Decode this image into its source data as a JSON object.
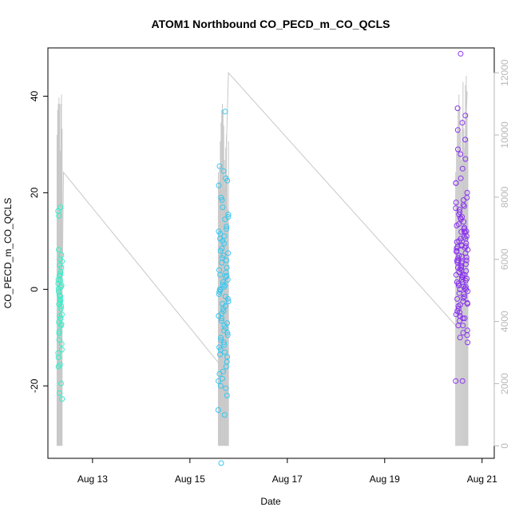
{
  "chart_data": {
    "type": "scatter",
    "title": "ATOM1 Northbound CO_PECD_m_CO_QCLS",
    "xlabel": "Date",
    "ylabel": "CO_PECD_m_CO_QCLS",
    "x_ticks": [
      "Aug 13",
      "Aug 15",
      "Aug 17",
      "Aug 19",
      "Aug 21"
    ],
    "y_ticks": [
      "-20",
      "0",
      "20",
      "40"
    ],
    "y2_ticks": [
      "0",
      "2000",
      "4000",
      "6000",
      "8000",
      "10000",
      "12000"
    ],
    "xlim": [
      "2016-08-12 02:00",
      "2016-08-21 06:00"
    ],
    "ylim": [
      -35,
      50
    ],
    "y2lim": [
      -400,
      12800
    ],
    "colors": {
      "first_flight": "#33f0c8",
      "second_flight": "#33c8f2",
      "third_flight": "#8a33f0",
      "secondary_line": "#c8c8c8",
      "right_axis": "#b8b8b8"
    },
    "series": [
      {
        "flight_window": [
          "2016-08-12 07:00",
          "2016-08-12 09:00"
        ],
        "values": [
          16.2,
          -2.3,
          -3.1,
          -7.2,
          -15.6,
          -14.1,
          0.5,
          -1.2,
          -5.2,
          3.1,
          8.2,
          7.1,
          5.0,
          1.2,
          -6.0,
          -10.5,
          -11.3,
          -2.8,
          0.1,
          -19.5,
          -21.5,
          -22.7,
          17.0,
          15.2,
          4.5,
          6.2,
          2.0,
          -4.0,
          -8.7,
          -12.5,
          1.8,
          -0.5,
          -3.5,
          -5.5,
          -13.2,
          3.6,
          -9.1,
          0.8,
          -2.1,
          -16.0,
          -7.5,
          2.8,
          5.8,
          -1.5,
          -6.8
        ]
      },
      {
        "flight_window": [
          "2016-08-15 14:00",
          "2016-08-15 19:00"
        ],
        "values": [
          -25.0,
          -26.0,
          -20.0,
          -22.0,
          -17.0,
          -12.0,
          -8.0,
          -5.0,
          -2.0,
          0.5,
          3.0,
          6.0,
          10.0,
          12.0,
          14.5,
          19.0,
          22.5,
          24.5,
          25.5,
          23.0,
          18.5,
          15.5,
          11.0,
          8.0,
          4.5,
          1.5,
          -1.0,
          -3.5,
          -6.5,
          -9.5,
          -11.0,
          -13.5,
          -16.0,
          -18.5,
          -19.0,
          -13.0,
          -10.0,
          -7.0,
          -4.0,
          -0.5,
          2.5,
          5.5,
          7.5,
          9.5,
          11.5,
          13.0,
          17.0,
          21.5,
          36.8,
          -36.0,
          -9.0,
          -4.5,
          0.0,
          3.5,
          6.5,
          -2.5,
          -7.5,
          -12.5,
          -15.0,
          1.0,
          4.0,
          -1.5,
          -6.0,
          2.0,
          -8.5,
          10.5,
          12.5,
          -3.0,
          -5.5,
          0.8,
          -10.5,
          -14.0,
          7.0,
          -17.5,
          -20.5,
          8.5,
          15.0,
          -11.5,
          -0.2,
          2.8
        ]
      },
      {
        "flight_window": [
          "2016-08-20 11:00",
          "2016-08-20 17:00"
        ],
        "values": [
          -19.0,
          -9.0,
          -4.0,
          0.0,
          4.0,
          8.0,
          12.0,
          16.0,
          20.0,
          25.0,
          29.0,
          27.0,
          23.0,
          18.0,
          14.0,
          10.0,
          6.0,
          2.0,
          -2.0,
          -6.0,
          -10.0,
          -11.0,
          -7.5,
          -3.5,
          0.5,
          4.5,
          8.5,
          12.5,
          16.5,
          19.0,
          34.5,
          37.5,
          31.0,
          28.0,
          22.0,
          17.5,
          13.5,
          9.5,
          5.5,
          1.5,
          -1.5,
          -5.5,
          -8.5,
          2.5,
          6.5,
          10.5,
          14.5,
          3.0,
          -1.0,
          7.0,
          11.0,
          15.0,
          -4.5,
          0.2,
          4.2,
          8.2,
          -2.5,
          1.2,
          5.2,
          9.2,
          13.2,
          17.2,
          -6.5,
          -9.5,
          -19.0,
          33.0,
          36.0,
          48.8,
          22.0,
          18.5,
          15.5,
          12.0,
          9.0,
          6.0,
          3.0,
          0.0,
          -3.0,
          -6.0,
          -7.5,
          1.8,
          4.8,
          7.8,
          10.8,
          -0.8,
          2.2,
          5.8,
          8.8,
          11.8,
          14.8,
          16.8,
          -1.8,
          0.8,
          3.8,
          6.8,
          9.8,
          12.8,
          -4.8,
          -2.8,
          1.5,
          4.5,
          7.5,
          10.5,
          -5.2,
          0.6,
          3.6,
          6.6,
          2.6,
          5.6,
          8.6,
          -3.2,
          -0.4,
          2.9,
          5.9,
          8.9,
          11.9
        ]
      }
    ],
    "secondary_series": {
      "axis": "right",
      "points": [
        [
          "2016-08-12 08:15",
          300
        ],
        [
          "2016-08-12 09:40",
          8800
        ],
        [
          "2016-08-15 15:00",
          2600
        ],
        [
          "2016-08-15 19:00",
          12000
        ],
        [
          "2016-08-20 12:00",
          3800
        ],
        [
          "2016-08-20 16:40",
          11400
        ]
      ],
      "spike_groups": [
        {
          "window": [
            "2016-08-12 06:30",
            "2016-08-12 09:00"
          ],
          "tops": [
            10000,
            10800,
            11000,
            11200,
            11000,
            9500,
            11000,
            11300,
            10200
          ],
          "bottom": 0
        },
        {
          "window": [
            "2016-08-15 14:00",
            "2016-08-15 19:00"
          ],
          "tops": [
            8800,
            8500,
            9000,
            9800,
            10400,
            10800,
            11000,
            10800,
            10300,
            9200,
            8000,
            9600,
            10000,
            8700,
            7600,
            9800
          ],
          "bottom": 0
        },
        {
          "window": [
            "2016-08-20 11:00",
            "2016-08-20 17:00"
          ],
          "tops": [
            8800,
            9500,
            10200,
            10800,
            11300,
            10900,
            10100,
            9200,
            10500,
            11700,
            10200,
            9400,
            11600,
            11900,
            10700,
            9900
          ],
          "bottom": 0
        }
      ]
    }
  }
}
